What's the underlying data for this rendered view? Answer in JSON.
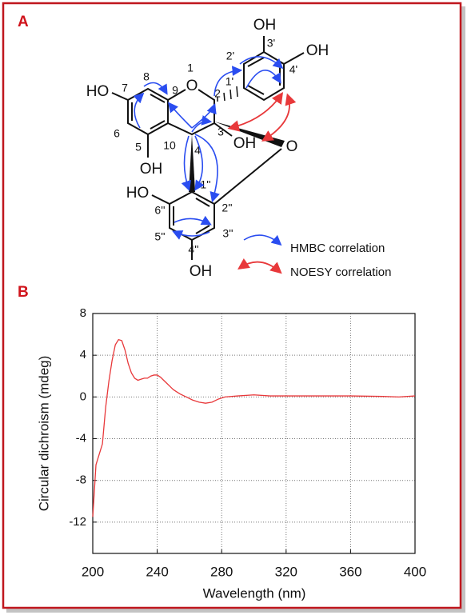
{
  "panels": [
    "A",
    "B"
  ],
  "structure": {
    "atoms": [
      "HO",
      "7",
      "8",
      "9",
      "O",
      "1",
      "2",
      "2'",
      "1'",
      "3'",
      "OH",
      "OH",
      "4'",
      "3",
      "OH",
      "O",
      "6",
      "5",
      "10",
      "4",
      "OH",
      "HO",
      "1''",
      "6''",
      "2''",
      "5''",
      "3''",
      "4''",
      "OH"
    ]
  },
  "legend": [
    "HMBC correlation",
    "NOESY correlation"
  ],
  "chart_data": {
    "type": "line",
    "x_label": "Wavelength (nm)",
    "y_label": "Circular dichroism (mdeg)",
    "x": [
      200,
      202,
      204,
      206,
      208,
      210,
      212,
      214,
      216,
      218,
      220,
      222,
      224,
      226,
      228,
      230,
      232,
      234,
      236,
      238,
      240,
      242,
      244,
      246,
      248,
      250,
      254,
      258,
      262,
      266,
      270,
      274,
      278,
      282,
      290,
      300,
      310,
      320,
      340,
      360,
      380,
      390,
      400
    ],
    "series": [
      {
        "name": "CD",
        "color": "#e8383a",
        "values": [
          -11.5,
          -6.5,
          -5.5,
          -4.5,
          -1,
          1.5,
          3.5,
          5,
          5.5,
          5.4,
          4.5,
          3.2,
          2.3,
          1.8,
          1.6,
          1.7,
          1.8,
          1.8,
          2.0,
          2.1,
          2.1,
          1.9,
          1.6,
          1.3,
          1.0,
          0.7,
          0.3,
          0,
          -0.3,
          -0.5,
          -0.6,
          -0.5,
          -0.2,
          0,
          0.1,
          0.2,
          0.1,
          0.1,
          0.1,
          0.1,
          0.05,
          0,
          0.1
        ]
      }
    ],
    "xlim": [
      200,
      400
    ],
    "xticks": [
      200,
      240,
      280,
      320,
      360,
      400
    ],
    "ylim": [
      -15,
      8
    ],
    "yticks": [
      -12,
      -8,
      -4,
      0,
      4,
      8
    ],
    "grid": true
  }
}
